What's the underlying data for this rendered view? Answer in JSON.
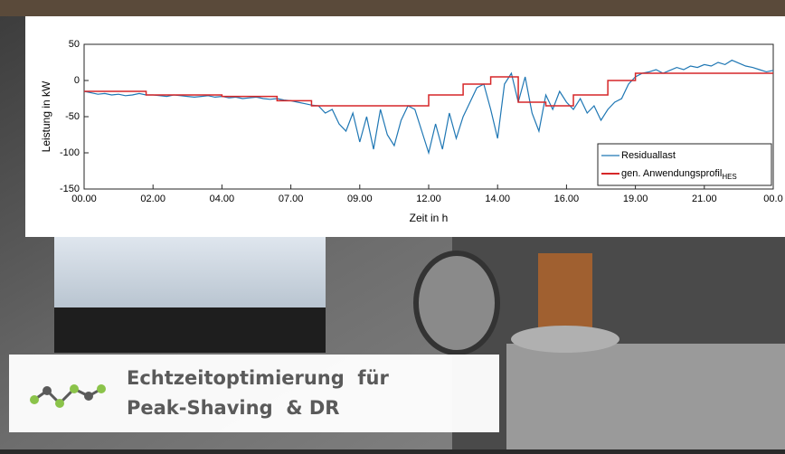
{
  "chart_data": {
    "type": "line",
    "ylabel": "Leistung in kW",
    "xlabel": "Zeit in h",
    "xlim": [
      0,
      10
    ],
    "ylim": [
      -150,
      50
    ],
    "xticks": [
      {
        "value": 0,
        "label": "00.00"
      },
      {
        "value": 1,
        "label": "02.00"
      },
      {
        "value": 2,
        "label": "04.00"
      },
      {
        "value": 3,
        "label": "07.00"
      },
      {
        "value": 4,
        "label": "09.00"
      },
      {
        "value": 5,
        "label": "12.00"
      },
      {
        "value": 6,
        "label": "14.00"
      },
      {
        "value": 7,
        "label": "16.00"
      },
      {
        "value": 8,
        "label": "19.00"
      },
      {
        "value": 9,
        "label": "21.00"
      },
      {
        "value": 10,
        "label": "00.0"
      }
    ],
    "yticks": [
      50,
      0,
      -50,
      -100,
      -150
    ],
    "legend": "lower-right",
    "series": [
      {
        "name": "Residuallast",
        "color": "#1f77b4",
        "x": [
          0,
          0.1,
          0.2,
          0.3,
          0.4,
          0.5,
          0.6,
          0.7,
          0.8,
          0.9,
          1,
          1.1,
          1.2,
          1.3,
          1.4,
          1.5,
          1.6,
          1.7,
          1.8,
          1.9,
          2,
          2.1,
          2.2,
          2.3,
          2.4,
          2.5,
          2.6,
          2.7,
          2.8,
          2.9,
          3,
          3.1,
          3.2,
          3.3,
          3.4,
          3.5,
          3.6,
          3.7,
          3.8,
          3.9,
          4,
          4.1,
          4.2,
          4.3,
          4.4,
          4.5,
          4.6,
          4.7,
          4.8,
          4.9,
          5,
          5.1,
          5.2,
          5.3,
          5.4,
          5.5,
          5.6,
          5.7,
          5.8,
          5.9,
          6,
          6.1,
          6.2,
          6.3,
          6.4,
          6.5,
          6.6,
          6.7,
          6.8,
          6.9,
          7,
          7.1,
          7.2,
          7.3,
          7.4,
          7.5,
          7.6,
          7.7,
          7.8,
          7.9,
          8,
          8.1,
          8.2,
          8.3,
          8.4,
          8.5,
          8.6,
          8.7,
          8.8,
          8.9,
          9,
          9.1,
          9.2,
          9.3,
          9.4,
          9.5,
          9.6,
          9.7,
          9.8,
          9.9,
          10
        ],
        "values": [
          -15,
          -17,
          -19,
          -18,
          -20,
          -19,
          -21,
          -20,
          -18,
          -20,
          -20,
          -21,
          -22,
          -20,
          -21,
          -22,
          -23,
          -22,
          -21,
          -23,
          -22,
          -24,
          -23,
          -25,
          -24,
          -23,
          -25,
          -26,
          -25,
          -27,
          -28,
          -30,
          -32,
          -34,
          -35,
          -45,
          -40,
          -60,
          -70,
          -45,
          -85,
          -50,
          -95,
          -40,
          -75,
          -90,
          -55,
          -35,
          -40,
          -70,
          -100,
          -60,
          -95,
          -45,
          -80,
          -50,
          -30,
          -10,
          -5,
          -40,
          -80,
          -5,
          10,
          -30,
          5,
          -45,
          -70,
          -20,
          -40,
          -15,
          -30,
          -40,
          -25,
          -45,
          -35,
          -55,
          -40,
          -30,
          -25,
          -5,
          5,
          10,
          12,
          15,
          10,
          14,
          18,
          15,
          20,
          18,
          22,
          20,
          25,
          22,
          28,
          24,
          20,
          18,
          15,
          12,
          14
        ]
      },
      {
        "name": "gen. Anwendungsprofil",
        "subscript": "HES",
        "color": "#d62728",
        "x": [
          0,
          0.9,
          0.9,
          2,
          2,
          2.8,
          2.8,
          3.3,
          3.3,
          5,
          5,
          5.5,
          5.5,
          5.9,
          5.9,
          6.3,
          6.3,
          6.7,
          6.7,
          7.1,
          7.1,
          7.6,
          7.6,
          8,
          8,
          10
        ],
        "values": [
          -15,
          -15,
          -20,
          -20,
          -22,
          -22,
          -28,
          -28,
          -35,
          -35,
          -20,
          -20,
          -5,
          -5,
          5,
          5,
          -30,
          -30,
          -35,
          -35,
          -20,
          -20,
          0,
          0,
          10,
          10
        ]
      }
    ]
  },
  "caption": {
    "line1": "Echtzeitoptimierung  für",
    "line2": "Peak-Shaving  & DR"
  }
}
